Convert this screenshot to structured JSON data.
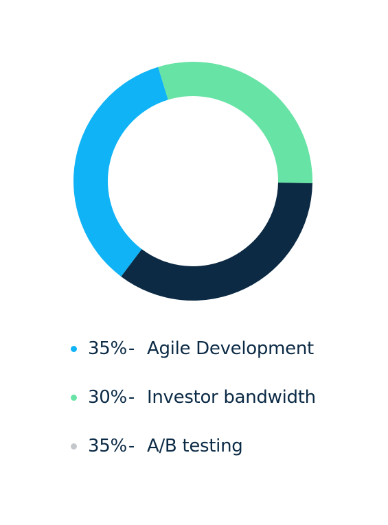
{
  "chart_data": {
    "type": "pie",
    "style": "donut",
    "title": "",
    "legend_position": "bottom",
    "slices": [
      {
        "label": "Agile Development",
        "value": 35,
        "value_label": "35%",
        "color": "#10b3f5",
        "arc_color": "#10b3f5"
      },
      {
        "label": "Investor bandwidth",
        "value": 30,
        "value_label": "30%",
        "color": "#68e3a6",
        "arc_color": "#68e3a6"
      },
      {
        "label": "A/B testing",
        "value": 35,
        "value_label": "35%",
        "color": "#c4c8cc",
        "arc_color": "#0c2a44"
      }
    ],
    "separator": "-"
  }
}
